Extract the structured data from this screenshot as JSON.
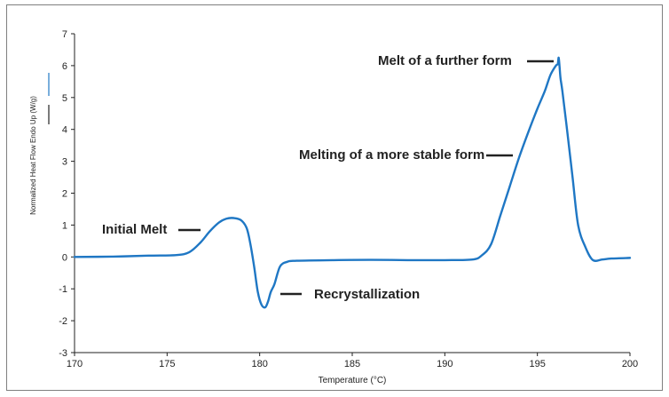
{
  "chart_data": {
    "type": "line",
    "title": "",
    "xlabel": "Temperature (°C)",
    "ylabel": "Normalized Heat Flow Endo Up (W/g)",
    "xlim": [
      170,
      200
    ],
    "ylim": [
      -3,
      7
    ],
    "xticks": [
      170,
      175,
      180,
      185,
      190,
      195,
      200
    ],
    "yticks": [
      -3,
      -2,
      -1,
      0,
      1,
      2,
      3,
      4,
      5,
      6,
      7
    ],
    "grid": false,
    "line_color": "#1f77c4",
    "series": [
      {
        "x": [
          170,
          172,
          174,
          175.5,
          176.2,
          176.8,
          177.3,
          177.8,
          178.2,
          178.6,
          179.0,
          179.3,
          179.5,
          179.7,
          179.9,
          180.1,
          180.3,
          180.45,
          180.6,
          180.8,
          181.1,
          181.5,
          182,
          184,
          186,
          188,
          190,
          191.5,
          192.0,
          192.5,
          193.0,
          193.5,
          194.0,
          194.5,
          195.0,
          195.4,
          195.7,
          196.0,
          196.1,
          196.15,
          196.2,
          196.25,
          196.35,
          196.6,
          196.9,
          197.2,
          197.6,
          198.0,
          198.5,
          199,
          200
        ],
        "y": [
          0.0,
          0.01,
          0.04,
          0.06,
          0.15,
          0.45,
          0.8,
          1.08,
          1.2,
          1.22,
          1.15,
          0.9,
          0.4,
          -0.3,
          -1.1,
          -1.5,
          -1.58,
          -1.4,
          -1.1,
          -0.85,
          -0.3,
          -0.15,
          -0.12,
          -0.1,
          -0.09,
          -0.1,
          -0.1,
          -0.08,
          0.05,
          0.4,
          1.3,
          2.2,
          3.1,
          3.9,
          4.65,
          5.2,
          5.7,
          6.0,
          6.05,
          6.25,
          5.95,
          5.6,
          5.2,
          4.0,
          2.5,
          1.0,
          0.3,
          -0.1,
          -0.08,
          -0.05,
          -0.03
        ]
      }
    ],
    "annotations": [
      {
        "text": "Initial Melt"
      },
      {
        "text": "Recrystallization"
      },
      {
        "text": "Melting of a more stable form"
      },
      {
        "text": "Melt of a further form"
      }
    ]
  }
}
